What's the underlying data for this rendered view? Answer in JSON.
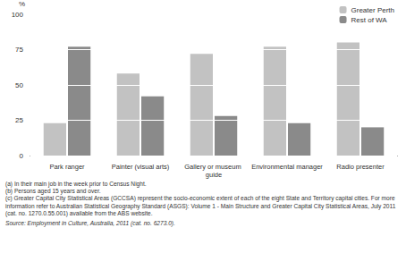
{
  "chart_data": {
    "type": "bar",
    "ylabel": "%",
    "categories": [
      "Park ranger",
      "Painter (visual arts)",
      "Gallery or museum guide",
      "Environmental manager",
      "Radio presenter"
    ],
    "series": [
      {
        "name": "Greater Perth",
        "color": "#c2c2c2",
        "values": [
          23,
          58,
          72,
          77,
          80
        ]
      },
      {
        "name": "Rest of WA",
        "color": "#8a8a8a",
        "values": [
          77,
          42,
          28,
          23,
          20
        ]
      }
    ],
    "ylim": [
      0,
      100
    ],
    "yticks": [
      0,
      25,
      50,
      75,
      100
    ],
    "grid": true,
    "legend": "top-right",
    "annotations": [
      "(a) In their main job in the week prior to Census Night.",
      "(b) Persons aged 15 years and over.",
      "(c) Greater Capital City Statistical Areas (GCCSA) represent the socio-economic extent of each of the eight State and Territory capital cities. For more information refer to Australian Statistical Geography Standard (ASGS): Volume 1 - Main Structure and Greater Capital City Statistical Areas, July 2011 (cat. no. 1270.0.55.001) available from the ABS website."
    ],
    "source": "Source: Employment in Culture, Australia, 2011 (cat. no. 6273.0)."
  }
}
